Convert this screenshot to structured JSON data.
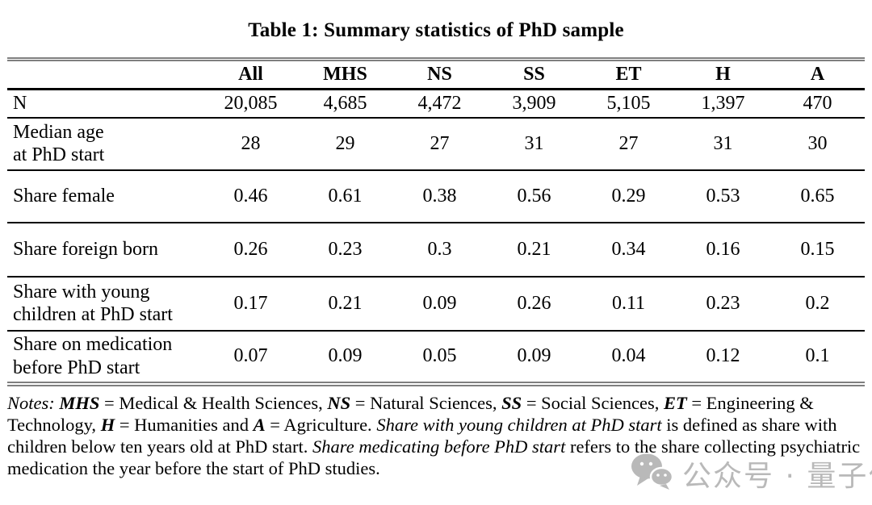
{
  "page": {
    "background": "#ffffff",
    "text_color": "#000000"
  },
  "title": "Table 1: Summary statistics of PhD sample",
  "table": {
    "outer_rule_color": "#7f7f7f",
    "inner_rule_color": "#000000",
    "columns": [
      "",
      "All",
      "MHS",
      "NS",
      "SS",
      "ET",
      "H",
      "A"
    ],
    "rows": [
      {
        "label_lines": [
          "N"
        ],
        "values": [
          "20,085",
          "4,685",
          "4,472",
          "3,909",
          "5,105",
          "1,397",
          "470"
        ]
      },
      {
        "label_lines": [
          "Median age",
          "at PhD start"
        ],
        "values": [
          "28",
          "29",
          "27",
          "31",
          "27",
          "31",
          "30"
        ]
      },
      {
        "label_lines": [
          "Share female"
        ],
        "values": [
          "0.46",
          "0.61",
          "0.38",
          "0.56",
          "0.29",
          "0.53",
          "0.65"
        ]
      },
      {
        "label_lines": [
          "Share foreign born"
        ],
        "values": [
          "0.26",
          "0.23",
          "0.3",
          "0.21",
          "0.34",
          "0.16",
          "0.15"
        ]
      },
      {
        "label_lines": [
          "Share with young",
          "children at PhD start"
        ],
        "values": [
          "0.17",
          "0.21",
          "0.09",
          "0.26",
          "0.11",
          "0.23",
          "0.2"
        ]
      },
      {
        "label_lines": [
          "Share on medication",
          "before PhD start"
        ],
        "values": [
          "0.07",
          "0.09",
          "0.05",
          "0.09",
          "0.04",
          "0.12",
          "0.1"
        ]
      }
    ]
  },
  "notes": {
    "segments": [
      {
        "style": "italic",
        "text": "Notes: "
      },
      {
        "style": "bold-italic",
        "text": "MHS"
      },
      {
        "style": "normal",
        "text": " = Medical & Health Sciences, "
      },
      {
        "style": "bold-italic",
        "text": "NS"
      },
      {
        "style": "normal",
        "text": " = Natural Sciences, "
      },
      {
        "style": "bold-italic",
        "text": "SS"
      },
      {
        "style": "normal",
        "text": " = Social Sciences, "
      },
      {
        "style": "bold-italic",
        "text": "ET"
      },
      {
        "style": "normal",
        "text": " = Engineering & Technology, "
      },
      {
        "style": "bold-italic",
        "text": "H"
      },
      {
        "style": "normal",
        "text": " = Humanities and "
      },
      {
        "style": "bold-italic",
        "text": "A"
      },
      {
        "style": "normal",
        "text": " = Agriculture. "
      },
      {
        "style": "italic",
        "text": "Share with young children at PhD start"
      },
      {
        "style": "normal",
        "text": " is defined as share with children below ten years old at PhD start. "
      },
      {
        "style": "italic",
        "text": "Share medicating before PhD start"
      },
      {
        "style": "normal",
        "text": " refers to the share collecting psychiatric medication the year before the start of PhD studies."
      }
    ]
  },
  "watermark": {
    "icon": "wechat-icon",
    "text": "公众号 · 量子位",
    "color": "#8f8f8f"
  }
}
